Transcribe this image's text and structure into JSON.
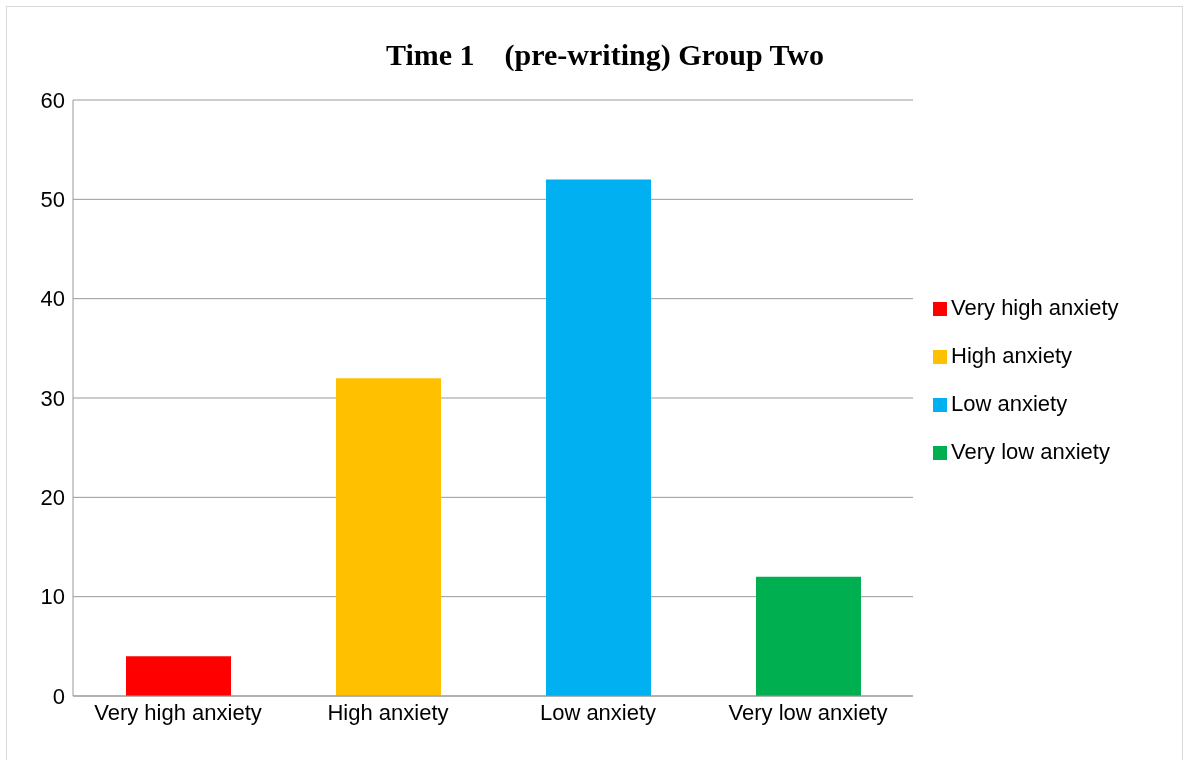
{
  "chart_data": {
    "type": "bar",
    "title": "Time 1    (pre-writing) Group Two",
    "categories": [
      "Very high anxiety",
      "High anxiety",
      "Low anxiety",
      "Very low anxiety"
    ],
    "series": [
      {
        "name": "Very high anxiety",
        "color": "#ff0000",
        "values": [
          4,
          null,
          null,
          null
        ]
      },
      {
        "name": "High anxiety",
        "color": "#ffc000",
        "values": [
          null,
          32,
          null,
          null
        ]
      },
      {
        "name": "Low anxiety",
        "color": "#00b0f0",
        "values": [
          null,
          null,
          52,
          null
        ]
      },
      {
        "name": "Very low anxiety",
        "color": "#00b050",
        "values": [
          null,
          null,
          null,
          12
        ]
      }
    ],
    "stacked": true,
    "ylim": [
      0,
      60
    ],
    "yticks": [
      0,
      10,
      20,
      30,
      40,
      50,
      60
    ],
    "grid": "y",
    "legend": "right"
  }
}
